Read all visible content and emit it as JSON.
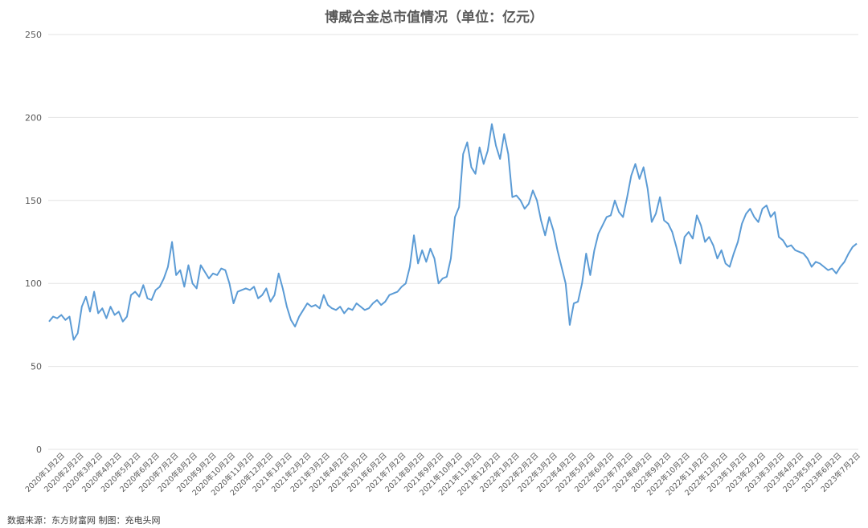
{
  "title": "博威合金总市值情况（单位：亿元）",
  "source": "数据来源：东方财富网  制图：充电头网",
  "chart_data": {
    "type": "line",
    "title": "博威合金总市值情况（单位：亿元）",
    "ylim": [
      0,
      250
    ],
    "yticks": [
      0,
      50,
      100,
      150,
      200,
      250
    ],
    "grid": true,
    "series_color": "#5b9bd5",
    "x_labels": [
      "2020年1月2日",
      "2020年2月2日",
      "2020年3月2日",
      "2020年4月2日",
      "2020年5月2日",
      "2020年6月2日",
      "2020年7月2日",
      "2020年8月2日",
      "2020年9月2日",
      "2020年10月2日",
      "2020年11月2日",
      "2020年12月2日",
      "2021年1月2日",
      "2021年2月2日",
      "2021年3月2日",
      "2021年4月2日",
      "2021年5月2日",
      "2021年6月2日",
      "2021年7月2日",
      "2021年8月2日",
      "2021年9月2日",
      "2021年10月2日",
      "2021年11月2日",
      "2021年12月2日",
      "2022年1月2日",
      "2022年2月2日",
      "2022年3月2日",
      "2022年4月2日",
      "2022年5月2日",
      "2022年6月2日",
      "2022年7月2日",
      "2022年8月2日",
      "2022年9月2日",
      "2022年10月2日",
      "2022年11月2日",
      "2022年12月2日",
      "2023年1月2日",
      "2023年2月2日",
      "2023年3月2日",
      "2023年4月2日",
      "2023年5月2日",
      "2023年6月2日",
      "2023年7月2日"
    ],
    "series": [
      {
        "values": [
          77,
          80,
          79,
          81,
          78,
          80,
          66,
          70,
          86,
          92,
          83,
          95,
          82,
          85,
          79,
          86,
          81,
          83,
          77,
          80,
          93,
          95,
          92,
          99,
          91,
          90,
          96,
          98,
          103,
          110,
          125,
          105,
          108,
          98,
          111,
          100,
          97,
          111,
          107,
          103,
          106,
          105,
          109,
          108,
          100,
          88,
          95,
          96,
          97,
          96,
          98,
          91,
          93,
          97,
          89,
          93,
          106,
          97,
          86,
          78,
          74,
          80,
          84,
          88,
          86,
          87,
          85,
          93,
          87,
          85,
          84,
          86,
          82,
          85,
          84,
          88,
          86,
          84,
          85,
          88,
          90,
          87,
          89,
          93,
          94,
          95,
          98,
          100,
          110,
          129,
          112,
          120,
          113,
          121,
          115,
          100,
          103,
          104,
          115,
          140,
          146,
          178,
          185,
          170,
          166,
          182,
          172,
          180,
          196,
          183,
          175,
          190,
          178,
          152,
          153,
          150,
          145,
          148,
          156,
          150,
          138,
          129,
          140,
          132,
          120,
          110,
          100,
          75,
          88,
          89,
          100,
          118,
          105,
          120,
          130,
          135,
          140,
          141,
          150,
          143,
          140,
          152,
          165,
          172,
          163,
          170,
          157,
          137,
          142,
          152,
          138,
          136,
          131,
          122,
          112,
          128,
          131,
          127,
          141,
          135,
          125,
          128,
          123,
          115,
          120,
          112,
          110,
          118,
          125,
          136,
          142,
          145,
          140,
          137,
          145,
          147,
          140,
          143,
          128,
          126,
          122,
          123,
          120,
          119,
          118,
          115,
          110,
          113,
          112,
          110,
          108,
          109,
          106,
          110,
          113,
          118,
          122,
          124
        ]
      }
    ]
  }
}
